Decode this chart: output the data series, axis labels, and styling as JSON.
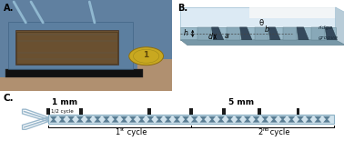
{
  "panel_A_label": "A.",
  "panel_B_label": "B.",
  "panel_C_label": "C.",
  "white": "#ffffff",
  "black": "#000000",
  "light_blue_bg": "#c5d8e8",
  "chip_body_color": "#7aa0c0",
  "chip_channel_dark": "#2a2018",
  "chip_base_black": "#111111",
  "coin_gold": "#c8a830",
  "coin_edge": "#a08820",
  "tube_color": "#90b8cc",
  "panel_B_top_face": "#dce8f0",
  "panel_B_side_face": "#b0c8d8",
  "panel_B_floor_face": "#8aaabb",
  "panel_B_groove_dark": "#2a3d50",
  "panel_B_ridge_light": "#8ab0c0",
  "chevron_fill": "#4a7088",
  "channel_bg": "#ccdde8",
  "channel_border": "#9ab8c8",
  "junction_color": "#b0ccd8",
  "marker_black": "#1a1a1a",
  "brace_color": "#1a1a1a"
}
